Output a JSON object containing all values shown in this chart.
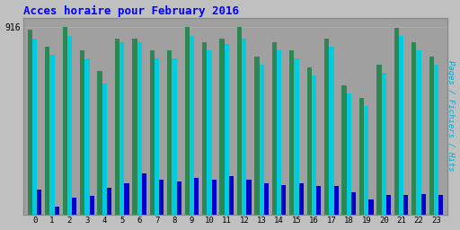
{
  "title": "Acces horaire pour February 2016",
  "title_color": "#0000ff",
  "title_fontsize": 9,
  "hours": [
    0,
    1,
    2,
    3,
    4,
    5,
    6,
    7,
    8,
    9,
    10,
    11,
    12,
    13,
    14,
    15,
    16,
    17,
    18,
    19,
    20,
    21,
    22,
    23
  ],
  "pages": [
    900,
    820,
    916,
    800,
    700,
    860,
    860,
    800,
    800,
    916,
    840,
    860,
    916,
    770,
    840,
    800,
    720,
    860,
    630,
    570,
    730,
    910,
    840,
    770
  ],
  "fichiers": [
    860,
    780,
    870,
    760,
    640,
    840,
    840,
    760,
    760,
    870,
    800,
    830,
    860,
    730,
    800,
    760,
    680,
    820,
    590,
    530,
    690,
    870,
    800,
    730
  ],
  "hits": [
    120,
    40,
    80,
    90,
    130,
    150,
    200,
    170,
    160,
    180,
    170,
    185,
    170,
    150,
    145,
    150,
    140,
    140,
    110,
    75,
    95,
    95,
    100,
    95
  ],
  "pages_color": "#2d8653",
  "fichiers_color": "#00ccdd",
  "hits_color": "#0000cc",
  "background_color": "#c0c0c0",
  "plot_bg_color": "#a0a0a0",
  "ylabel_right": "Pages / Fichiers / Hits",
  "ylabel_color": "#00aacc",
  "ytick_label": "916",
  "ytick_value": 916,
  "bar_width": 0.27,
  "ymax": 960,
  "grid_color": "#b0b0b0",
  "border_color": "#888888"
}
